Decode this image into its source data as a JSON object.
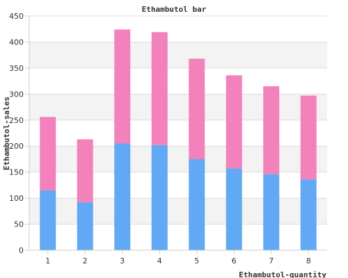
{
  "chart_data": {
    "type": "bar",
    "stacked": true,
    "title": "Ethambutol bar",
    "xlabel": "Ethambutol-quantity",
    "ylabel": "Ethambutol-sales",
    "categories": [
      "1",
      "2",
      "3",
      "4",
      "5",
      "6",
      "7",
      "8"
    ],
    "series": [
      {
        "values": [
          115,
          92,
          205,
          202,
          175,
          157,
          146,
          136
        ]
      },
      {
        "values": [
          141,
          121,
          219,
          217,
          193,
          179,
          169,
          161
        ]
      }
    ],
    "ylim": [
      0,
      450
    ],
    "yticks": [
      0,
      50,
      100,
      150,
      200,
      250,
      300,
      350,
      400,
      450
    ],
    "grid": true,
    "legend": "none",
    "colors": {
      "series": [
        "#61a8f5",
        "#f281bc"
      ],
      "band": "#f3f3f3",
      "gridline": "#dcdcdc",
      "axis": "#cccccc",
      "text": "#333333"
    }
  }
}
